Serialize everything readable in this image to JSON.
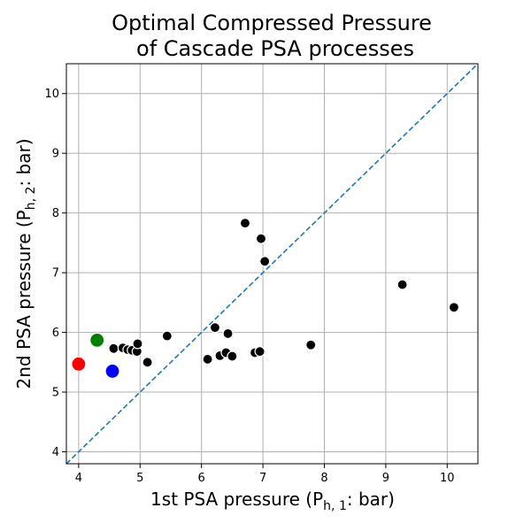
{
  "chart_data": {
    "type": "scatter",
    "title_line1": "Optimal Compressed Pressure",
    "title_line2": "of Cascade PSA processes",
    "xlabel_main": "1st PSA pressure (P",
    "xlabel_sub": "h, 1",
    "xlabel_tail": ": bar)",
    "ylabel_main": "2nd PSA pressure (P",
    "ylabel_sub": "h, 2",
    "ylabel_tail": ": bar)",
    "xlim": [
      3.8,
      10.5
    ],
    "ylim": [
      3.8,
      10.5
    ],
    "xticks": [
      4,
      5,
      6,
      7,
      8,
      9,
      10
    ],
    "yticks": [
      4,
      5,
      6,
      7,
      8,
      9,
      10
    ],
    "grid": true,
    "reference_line": "y = x",
    "reference_color": "#1f77b4",
    "series": [
      {
        "color": "#000000",
        "points": [
          [
            4.57,
            5.73
          ],
          [
            4.72,
            5.74
          ],
          [
            4.8,
            5.71
          ],
          [
            4.87,
            5.7
          ],
          [
            4.95,
            5.68
          ],
          [
            4.96,
            5.81
          ],
          [
            5.12,
            5.5
          ],
          [
            5.44,
            5.94
          ],
          [
            6.1,
            5.55
          ],
          [
            6.22,
            6.08
          ],
          [
            6.3,
            5.61
          ],
          [
            6.4,
            5.66
          ],
          [
            6.43,
            5.98
          ],
          [
            6.5,
            5.6
          ],
          [
            6.71,
            7.83
          ],
          [
            6.87,
            5.66
          ],
          [
            6.95,
            5.68
          ],
          [
            6.97,
            7.57
          ],
          [
            7.03,
            7.19
          ],
          [
            7.78,
            5.79
          ],
          [
            9.27,
            6.8
          ],
          [
            10.11,
            6.42
          ]
        ]
      },
      {
        "color": "#ff0000",
        "points": [
          [
            4.0,
            5.47
          ]
        ]
      },
      {
        "color": "#008000",
        "points": [
          [
            4.3,
            5.87
          ]
        ]
      },
      {
        "color": "#0000ff",
        "points": [
          [
            4.55,
            5.35
          ]
        ]
      }
    ]
  }
}
